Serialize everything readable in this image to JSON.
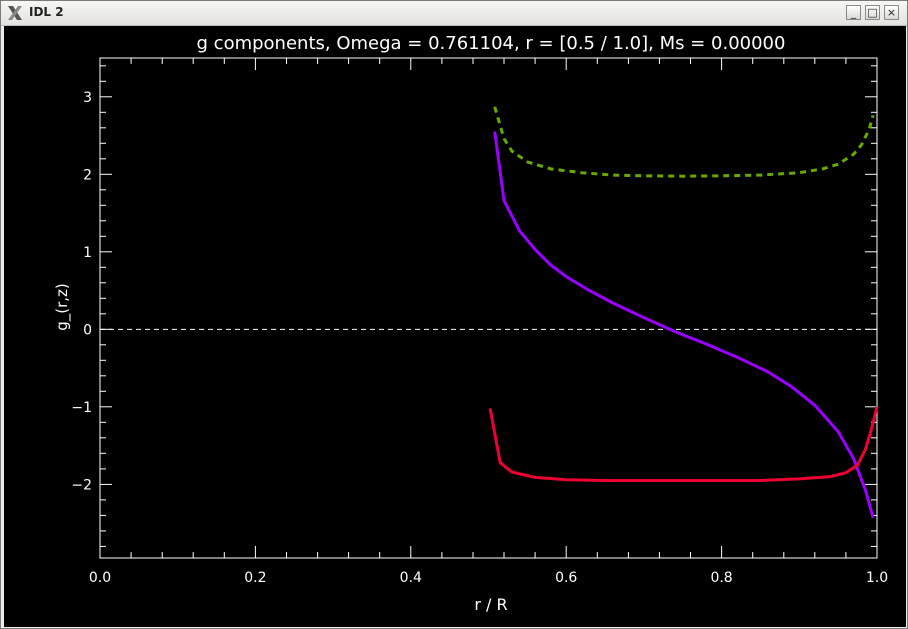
{
  "window": {
    "title": "IDL 2",
    "buttons": {
      "minimize": "_",
      "maximize": "□",
      "close": "×"
    }
  },
  "colors": {
    "background": "#000000",
    "axes": "#ffffff",
    "series_solid_purple": "#9900ff",
    "series_solid_red": "#ee0033",
    "series_dashed_green": "#66aa00",
    "zero_line": "#ffffff"
  },
  "chart_data": {
    "type": "line",
    "title": "g components, Omega =  0.761104, r = [0.5 / 1.0], Ms =  0.00000",
    "xlabel": "r / R",
    "ylabel": "g_(r,z)",
    "xlim": [
      0.0,
      1.0
    ],
    "ylim": [
      -2.95,
      3.5
    ],
    "xticks": [
      "0.0",
      "0.2",
      "0.4",
      "0.6",
      "0.8",
      "1.0"
    ],
    "xtick_values": [
      0.0,
      0.2,
      0.4,
      0.6,
      0.8,
      1.0
    ],
    "yticks": [
      "−2",
      "−1",
      "0",
      "1",
      "2",
      "3"
    ],
    "ytick_values": [
      -2,
      -1,
      0,
      1,
      2,
      3
    ],
    "grid": false,
    "reference_line": {
      "y": 0,
      "style": "dashed"
    },
    "series": [
      {
        "color": "#66aa00",
        "style": "dashed",
        "x": [
          0.508,
          0.52,
          0.53,
          0.55,
          0.58,
          0.62,
          0.66,
          0.7,
          0.75,
          0.8,
          0.85,
          0.9,
          0.93,
          0.95,
          0.97,
          0.98,
          0.99,
          0.995
        ],
        "y": [
          2.87,
          2.46,
          2.3,
          2.16,
          2.07,
          2.02,
          1.99,
          1.98,
          1.975,
          1.98,
          1.99,
          2.02,
          2.07,
          2.13,
          2.26,
          2.38,
          2.58,
          2.76
        ]
      },
      {
        "color": "#9900ff",
        "style": "solid",
        "x": [
          0.508,
          0.52,
          0.54,
          0.56,
          0.58,
          0.6,
          0.63,
          0.66,
          0.7,
          0.74,
          0.78,
          0.82,
          0.86,
          0.89,
          0.92,
          0.95,
          0.97,
          0.985,
          0.995
        ],
        "y": [
          2.55,
          1.66,
          1.27,
          1.03,
          0.83,
          0.68,
          0.5,
          0.34,
          0.15,
          -0.03,
          -0.19,
          -0.36,
          -0.55,
          -0.74,
          -0.98,
          -1.32,
          -1.67,
          -2.07,
          -2.43
        ]
      },
      {
        "color": "#ee0033",
        "style": "solid",
        "x": [
          0.502,
          0.515,
          0.53,
          0.56,
          0.6,
          0.65,
          0.7,
          0.75,
          0.8,
          0.85,
          0.9,
          0.94,
          0.96,
          0.975,
          0.985,
          0.992,
          1.0
        ],
        "y": [
          -1.02,
          -1.72,
          -1.84,
          -1.91,
          -1.94,
          -1.95,
          -1.95,
          -1.95,
          -1.95,
          -1.95,
          -1.93,
          -1.9,
          -1.85,
          -1.75,
          -1.55,
          -1.32,
          -1.0
        ]
      }
    ]
  }
}
